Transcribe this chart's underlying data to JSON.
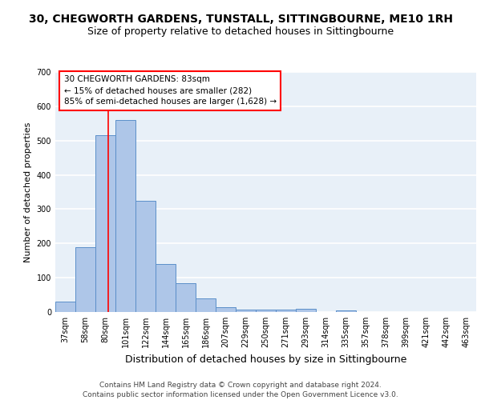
{
  "title1": "30, CHEGWORTH GARDENS, TUNSTALL, SITTINGBOURNE, ME10 1RH",
  "title2": "Size of property relative to detached houses in Sittingbourne",
  "xlabel": "Distribution of detached houses by size in Sittingbourne",
  "ylabel": "Number of detached properties",
  "categories": [
    "37sqm",
    "58sqm",
    "80sqm",
    "101sqm",
    "122sqm",
    "144sqm",
    "165sqm",
    "186sqm",
    "207sqm",
    "229sqm",
    "250sqm",
    "271sqm",
    "293sqm",
    "314sqm",
    "335sqm",
    "357sqm",
    "378sqm",
    "399sqm",
    "421sqm",
    "442sqm",
    "463sqm"
  ],
  "values": [
    30,
    190,
    515,
    560,
    325,
    140,
    85,
    40,
    13,
    8,
    8,
    8,
    10,
    0,
    5,
    0,
    0,
    0,
    0,
    0,
    0
  ],
  "bar_color": "#aec6e8",
  "bar_edge_color": "#5b8fc9",
  "ylim": [
    0,
    700
  ],
  "yticks": [
    0,
    100,
    200,
    300,
    400,
    500,
    600,
    700
  ],
  "annotation_text": "30 CHEGWORTH GARDENS: 83sqm\n← 15% of detached houses are smaller (282)\n85% of semi-detached houses are larger (1,628) →",
  "footer": "Contains HM Land Registry data © Crown copyright and database right 2024.\nContains public sector information licensed under the Open Government Licence v3.0.",
  "bg_color": "#e8f0f8",
  "grid_color": "white",
  "title1_fontsize": 10,
  "title2_fontsize": 9,
  "xlabel_fontsize": 9,
  "ylabel_fontsize": 8,
  "tick_fontsize": 7,
  "footer_fontsize": 6.5,
  "annotation_fontsize": 7.5
}
